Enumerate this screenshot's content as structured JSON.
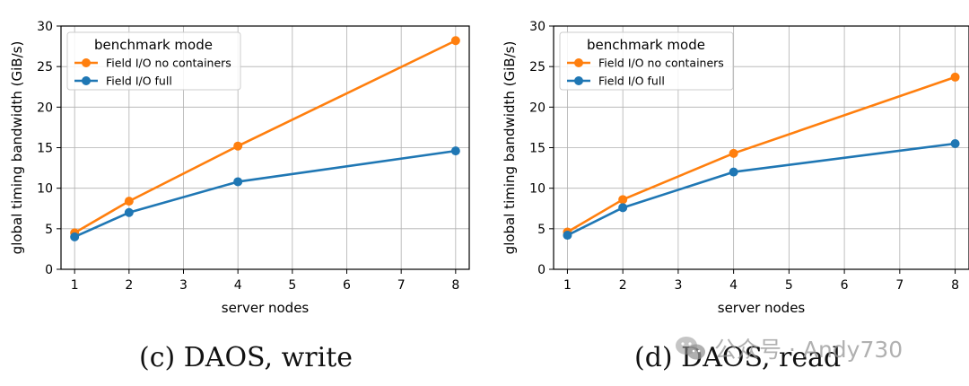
{
  "chart_data": [
    {
      "type": "line",
      "caption": "(c) DAOS, write",
      "xlabel": "server nodes",
      "ylabel": "global timing bandwidth (GiB/s)",
      "xlim": [
        0.75,
        8.25
      ],
      "ylim": [
        0,
        30
      ],
      "xticks": [
        1,
        2,
        3,
        4,
        5,
        6,
        7,
        8
      ],
      "yticks": [
        0,
        5,
        10,
        15,
        20,
        25,
        30
      ],
      "grid": true,
      "legend": {
        "title": "benchmark mode",
        "placement": "top-left"
      },
      "series": [
        {
          "name": "Field I/O no containers",
          "color": "#ff7f0e",
          "x": [
            1,
            2,
            4,
            8
          ],
          "y": [
            4.5,
            8.4,
            15.2,
            28.2
          ]
        },
        {
          "name": "Field I/O full",
          "color": "#1f77b4",
          "x": [
            1,
            2,
            4,
            8
          ],
          "y": [
            4.0,
            7.0,
            10.8,
            14.6
          ]
        }
      ]
    },
    {
      "type": "line",
      "caption": "(d) DAOS, read",
      "xlabel": "server nodes",
      "ylabel": "global timing bandwidth (GiB/s)",
      "xlim": [
        0.75,
        8.25
      ],
      "ylim": [
        0,
        30
      ],
      "xticks": [
        1,
        2,
        3,
        4,
        5,
        6,
        7,
        8
      ],
      "yticks": [
        0,
        5,
        10,
        15,
        20,
        25,
        30
      ],
      "grid": true,
      "legend": {
        "title": "benchmark mode",
        "placement": "top-left"
      },
      "series": [
        {
          "name": "Field I/O no containers",
          "color": "#ff7f0e",
          "x": [
            1,
            2,
            4,
            8
          ],
          "y": [
            4.6,
            8.6,
            14.3,
            23.7
          ]
        },
        {
          "name": "Field I/O full",
          "color": "#1f77b4",
          "x": [
            1,
            2,
            4,
            8
          ],
          "y": [
            4.2,
            7.6,
            12.0,
            15.5
          ]
        }
      ]
    }
  ],
  "watermark": {
    "text": "公众号 · Andy730"
  }
}
